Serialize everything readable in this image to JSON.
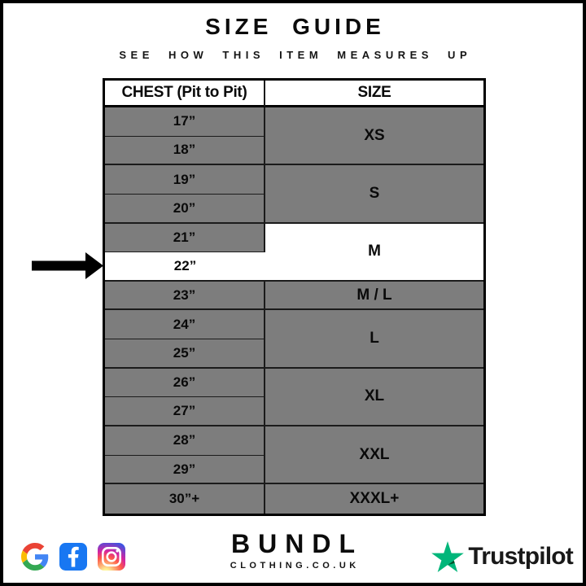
{
  "header": {
    "title": "SIZE GUIDE",
    "subtitle": "SEE HOW THIS ITEM MEASURES UP"
  },
  "table": {
    "col1_header": "CHEST (Pit to Pit)",
    "col2_header": "SIZE",
    "groups": [
      {
        "size": "XS",
        "measurements": [
          "17”",
          "18”"
        ]
      },
      {
        "size": "S",
        "measurements": [
          "19”",
          "20”"
        ]
      },
      {
        "size": "M",
        "measurements": [
          "21”",
          "22”"
        ],
        "row_highlight": "22”"
      },
      {
        "size": "M / L",
        "measurements": [
          "23”"
        ]
      },
      {
        "size": "L",
        "measurements": [
          "24”",
          "25”"
        ]
      },
      {
        "size": "XL",
        "measurements": [
          "26”",
          "27”"
        ]
      },
      {
        "size": "XXL",
        "measurements": [
          "28”",
          "29”"
        ]
      },
      {
        "size": "XXXL+",
        "measurements": [
          "30”+"
        ]
      }
    ]
  },
  "selection": {
    "chest": "22”",
    "size": "M"
  },
  "footer": {
    "brand": "BUNDL",
    "brand_sub": "CLOTHING.CO.UK",
    "trustpilot_label": "Trustpilot",
    "icons": [
      "google-icon",
      "facebook-icon",
      "instagram-icon",
      "trustpilot-star-icon"
    ]
  },
  "colors": {
    "table_gray": "#7D7D7D",
    "table_line": "#1B1B1B",
    "frame_black": "#000000",
    "facebook_blue": "#1877F2",
    "trustpilot_green": "#00B67A",
    "trustpilot_dark": "#005128",
    "google_red": "#EA4335",
    "google_blue": "#4285F4",
    "google_yellow": "#FBBC05",
    "google_green": "#34A853",
    "instagram_gradient": [
      "#FDF497",
      "#FD5949",
      "#D6249F",
      "#285AEB"
    ]
  }
}
